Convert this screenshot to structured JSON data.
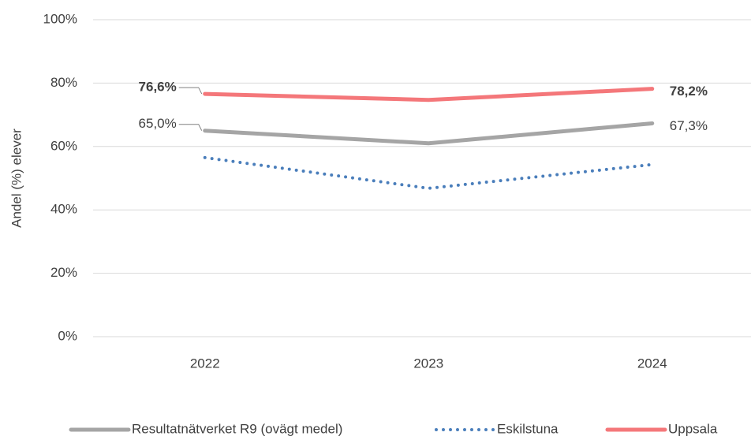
{
  "chart_data": {
    "type": "line",
    "y_label": "Andel (%) elever",
    "categories": [
      "2022",
      "2023",
      "2024"
    ],
    "ylim": [
      0,
      100
    ],
    "yticks": [
      {
        "value": 0,
        "label": "0%"
      },
      {
        "value": 20,
        "label": "20%"
      },
      {
        "value": 40,
        "label": "40%"
      },
      {
        "value": 60,
        "label": "60%"
      },
      {
        "value": 80,
        "label": "80%"
      },
      {
        "value": 100,
        "label": "100%"
      }
    ],
    "grid": true,
    "legend": "bottom",
    "series": [
      {
        "name": "Resultatnätverket R9 (ovägt medel)",
        "color": "#a5a5a5",
        "dash": "solid",
        "values": [
          65.0,
          61.0,
          67.3
        ],
        "value_labels": [
          "65,0%",
          null,
          "67,3%"
        ]
      },
      {
        "name": "Eskilstuna",
        "color": "#4a7ebb",
        "dash": "dotted",
        "values": [
          56.5,
          46.8,
          54.3
        ]
      },
      {
        "name": "Uppsala",
        "color": "#f4777a",
        "dash": "solid",
        "label_font_weight": "bold",
        "values": [
          76.6,
          74.7,
          78.2
        ],
        "value_labels": [
          "76,6%",
          null,
          "78,2%"
        ]
      }
    ]
  }
}
